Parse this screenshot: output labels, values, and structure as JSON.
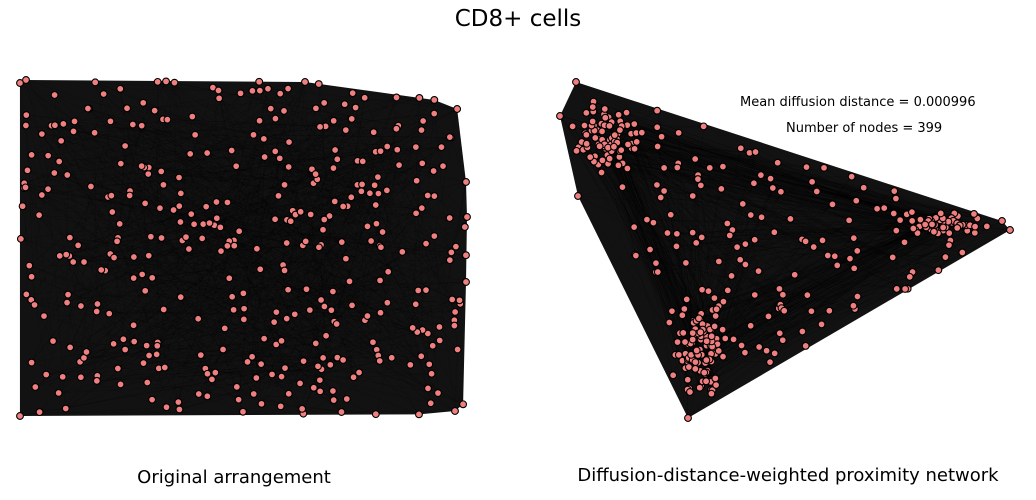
{
  "title": "CD8+ cells",
  "panels": {
    "left": {
      "caption": "Original arrangement"
    },
    "right": {
      "caption": "Diffusion-distance-weighted proximity network",
      "mean_diffusion_distance": "Mean diffusion distance = 0.000996",
      "number_of_nodes": "Number of nodes = 399"
    }
  },
  "colors": {
    "node_fill": "#f08080",
    "node_edge": "#000000",
    "edge": "#000000",
    "background": "#ffffff"
  }
}
